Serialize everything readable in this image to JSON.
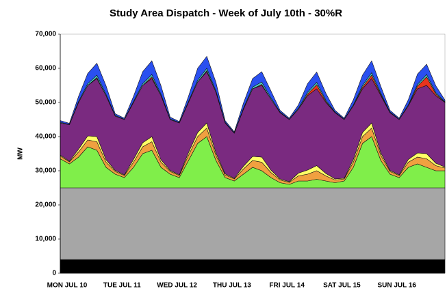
{
  "chart_data": {
    "type": "stacked-area",
    "title": "Study Area Dispatch - Week of July 10th - 30%R",
    "y_label": "MW",
    "categories": [
      "MON JUL 10",
      null,
      null,
      null,
      null,
      null,
      "TUE JUL 11",
      null,
      null,
      null,
      null,
      null,
      "WED JUL 12",
      null,
      null,
      null,
      null,
      null,
      "THU JUL 13",
      null,
      null,
      null,
      null,
      null,
      "FRI JUL 14",
      null,
      null,
      null,
      null,
      null,
      "SAT JUL 15",
      null,
      null,
      null,
      null,
      null,
      "SUN JUL 16",
      null,
      null,
      null,
      null,
      null,
      null
    ],
    "ylim": [
      0,
      70000
    ],
    "yticks": [
      0,
      {
        "value": 10000,
        "label": "10,000"
      },
      {
        "value": 20000,
        "label": "20,000"
      },
      {
        "value": 30000,
        "label": "30,000"
      },
      {
        "value": 40000,
        "label": "40,000"
      },
      {
        "value": 50000,
        "label": "50,000"
      },
      {
        "value": 60000,
        "label": "60,000"
      },
      {
        "value": 70000,
        "label": "70,000"
      }
    ],
    "series": [
      {
        "color": "#000000",
        "values": [
          4000,
          4000,
          4000,
          4000,
          4000,
          4000,
          4000,
          4000,
          4000,
          4000,
          4000,
          4000,
          4000,
          4000,
          4000,
          4000,
          4000,
          4000,
          4000,
          4000,
          4000,
          4000,
          4000,
          4000,
          4000,
          4000,
          4000,
          4000,
          4000,
          4000,
          4000,
          4000,
          4000,
          4000,
          4000,
          4000,
          4000,
          4000,
          4000,
          4000,
          4000,
          4000,
          4000
        ]
      },
      {
        "color": "#a6a6a6",
        "values": [
          21000,
          21000,
          21000,
          21000,
          21000,
          21000,
          21000,
          21000,
          21000,
          21000,
          21000,
          21000,
          21000,
          21000,
          21000,
          21000,
          21000,
          21000,
          21000,
          21000,
          21000,
          21000,
          21000,
          21000,
          21000,
          21000,
          21000,
          21000,
          21000,
          21000,
          21000,
          21000,
          21000,
          21000,
          21000,
          21000,
          21000,
          21000,
          21000,
          21000,
          21000,
          21000,
          21000
        ]
      },
      {
        "color": "#80ee4a",
        "values": [
          8500,
          7000,
          9000,
          12000,
          11000,
          6000,
          4000,
          3000,
          6000,
          10000,
          11000,
          6000,
          4000,
          3000,
          8000,
          13000,
          15000,
          8000,
          3000,
          2000,
          4000,
          6000,
          5000,
          3000,
          1500,
          1000,
          2000,
          2000,
          2500,
          2000,
          1500,
          2000,
          6000,
          13000,
          15000,
          8000,
          4000,
          3000,
          6000,
          7000,
          6000,
          5000,
          5000
        ]
      },
      {
        "color": "#f0a040",
        "values": [
          800,
          600,
          1500,
          2000,
          2500,
          1500,
          800,
          600,
          1500,
          2000,
          2500,
          1500,
          800,
          600,
          1500,
          2000,
          2500,
          1500,
          800,
          600,
          1500,
          2000,
          2500,
          1500,
          800,
          600,
          1500,
          2000,
          2500,
          1500,
          800,
          600,
          1500,
          2000,
          2500,
          1500,
          800,
          600,
          1500,
          2000,
          2500,
          1500,
          800
        ]
      },
      {
        "color": "#ffff66",
        "values": [
          300,
          200,
          800,
          1200,
          1500,
          700,
          300,
          200,
          800,
          1200,
          1500,
          700,
          300,
          200,
          800,
          1200,
          1500,
          700,
          300,
          200,
          800,
          1200,
          1500,
          700,
          300,
          200,
          800,
          1200,
          1500,
          700,
          300,
          200,
          800,
          1200,
          1500,
          700,
          300,
          200,
          800,
          1200,
          1500,
          700,
          300
        ]
      },
      {
        "color": "#7a2a80",
        "values": [
          9400,
          10700,
          13700,
          14800,
          17000,
          18800,
          15900,
          16200,
          16700,
          16800,
          17000,
          18800,
          14900,
          15200,
          14700,
          14800,
          15000,
          17800,
          14900,
          13200,
          16700,
          19800,
          21000,
          20800,
          19400,
          18200,
          18700,
          21800,
          22500,
          20800,
          19400,
          17200,
          15700,
          12800,
          13000,
          16800,
          16900,
          16200,
          15700,
          18800,
          20000,
          19800,
          18900
        ]
      },
      {
        "color": "#e8341c",
        "values": [
          0,
          0,
          0,
          0,
          300,
          0,
          0,
          0,
          0,
          0,
          500,
          0,
          0,
          0,
          0,
          0,
          300,
          0,
          0,
          0,
          0,
          0,
          300,
          0,
          0,
          0,
          0,
          500,
          1200,
          300,
          0,
          0,
          0,
          500,
          1000,
          300,
          0,
          0,
          0,
          800,
          2500,
          500,
          0
        ]
      },
      {
        "color": "#4dd0c8",
        "values": [
          200,
          100,
          300,
          500,
          700,
          400,
          200,
          100,
          300,
          500,
          700,
          400,
          200,
          100,
          300,
          500,
          700,
          400,
          200,
          100,
          300,
          500,
          700,
          400,
          200,
          100,
          300,
          500,
          700,
          400,
          200,
          100,
          300,
          500,
          700,
          400,
          200,
          100,
          300,
          500,
          700,
          400,
          200
        ]
      },
      {
        "color": "#2a50f0",
        "values": [
          500,
          300,
          1500,
          3000,
          3500,
          2500,
          500,
          300,
          1500,
          3500,
          4000,
          2500,
          500,
          300,
          1500,
          3500,
          3500,
          2500,
          500,
          300,
          1500,
          2500,
          3000,
          2000,
          500,
          300,
          1000,
          2500,
          3000,
          2000,
          500,
          300,
          1500,
          3000,
          3500,
          2000,
          500,
          300,
          1500,
          3000,
          3000,
          2000,
          500
        ]
      }
    ]
  }
}
